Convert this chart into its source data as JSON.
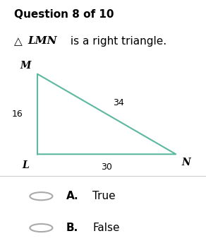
{
  "title": "Question 8 of 10",
  "subtitle_triangle": "LMN",
  "subtitle_text": " is a right triangle.",
  "triangle_vertices": {
    "L": [
      0,
      0
    ],
    "M": [
      0,
      1
    ],
    "N": [
      1,
      0
    ]
  },
  "side_labels": {
    "LM": "16",
    "MN": "34",
    "LN": "30"
  },
  "vertex_labels": [
    "M",
    "L",
    "N"
  ],
  "triangle_color": "#5cb8a0",
  "triangle_linewidth": 1.5,
  "bg_color": "#ffffff",
  "answer_A": "True",
  "answer_B": "False",
  "option_circle_color": "#aaaaaa",
  "separator_color": "#cccccc"
}
